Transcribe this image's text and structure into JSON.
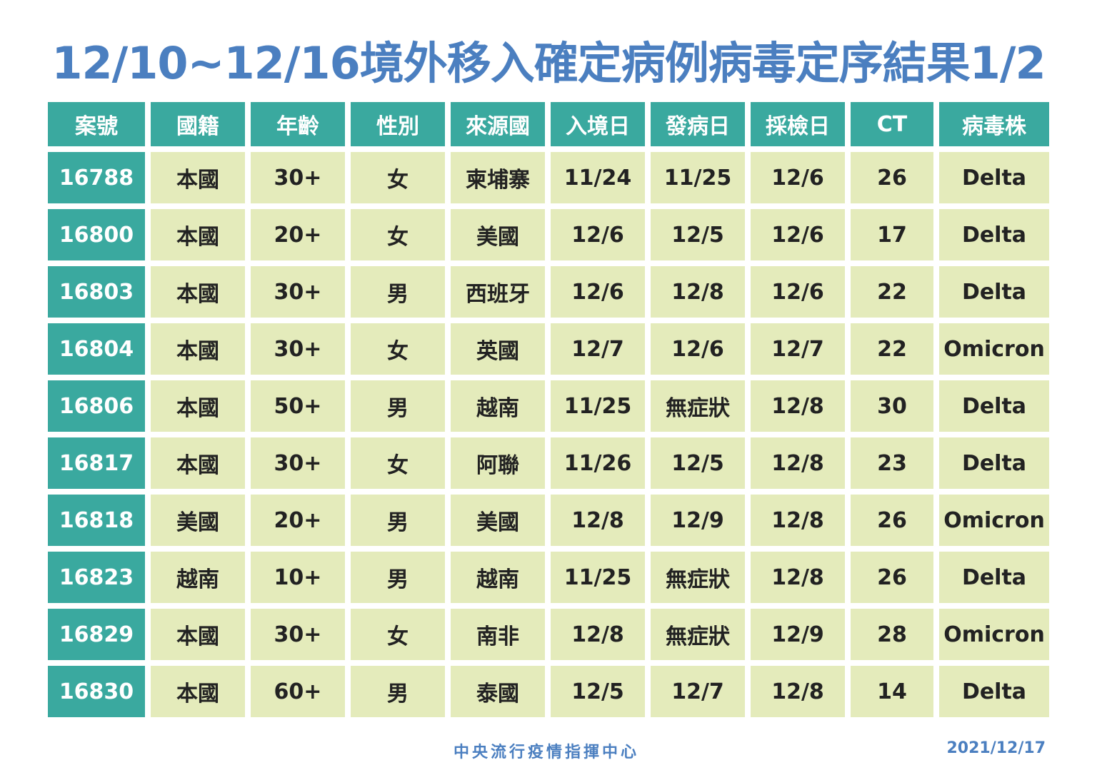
{
  "header": {
    "title": "12/10~12/16境外移入確定病例病毒定序結果1/2"
  },
  "table": {
    "columns": [
      "案號",
      "國籍",
      "年齡",
      "性別",
      "來源國",
      "入境日",
      "發病日",
      "採檢日",
      "CT",
      "病毒株"
    ],
    "rows": [
      [
        "16788",
        "本國",
        "30+",
        "女",
        "柬埔寨",
        "11/24",
        "11/25",
        "12/6",
        "26",
        "Delta"
      ],
      [
        "16800",
        "本國",
        "20+",
        "女",
        "美國",
        "12/6",
        "12/5",
        "12/6",
        "17",
        "Delta"
      ],
      [
        "16803",
        "本國",
        "30+",
        "男",
        "西班牙",
        "12/6",
        "12/8",
        "12/6",
        "22",
        "Delta"
      ],
      [
        "16804",
        "本國",
        "30+",
        "女",
        "英國",
        "12/7",
        "12/6",
        "12/7",
        "22",
        "Omicron"
      ],
      [
        "16806",
        "本國",
        "50+",
        "男",
        "越南",
        "11/25",
        "無症狀",
        "12/8",
        "30",
        "Delta"
      ],
      [
        "16817",
        "本國",
        "30+",
        "女",
        "阿聯",
        "11/26",
        "12/5",
        "12/8",
        "23",
        "Delta"
      ],
      [
        "16818",
        "美國",
        "20+",
        "男",
        "美國",
        "12/8",
        "12/9",
        "12/8",
        "26",
        "Omicron"
      ],
      [
        "16823",
        "越南",
        "10+",
        "男",
        "越南",
        "11/25",
        "無症狀",
        "12/8",
        "26",
        "Delta"
      ],
      [
        "16829",
        "本國",
        "30+",
        "女",
        "南非",
        "12/8",
        "無症狀",
        "12/9",
        "28",
        "Omicron"
      ],
      [
        "16830",
        "本國",
        "60+",
        "男",
        "泰國",
        "12/5",
        "12/7",
        "12/8",
        "14",
        "Delta"
      ]
    ]
  },
  "footer": {
    "source": "中央流行疫情指揮中心",
    "date": "2021/12/17"
  }
}
